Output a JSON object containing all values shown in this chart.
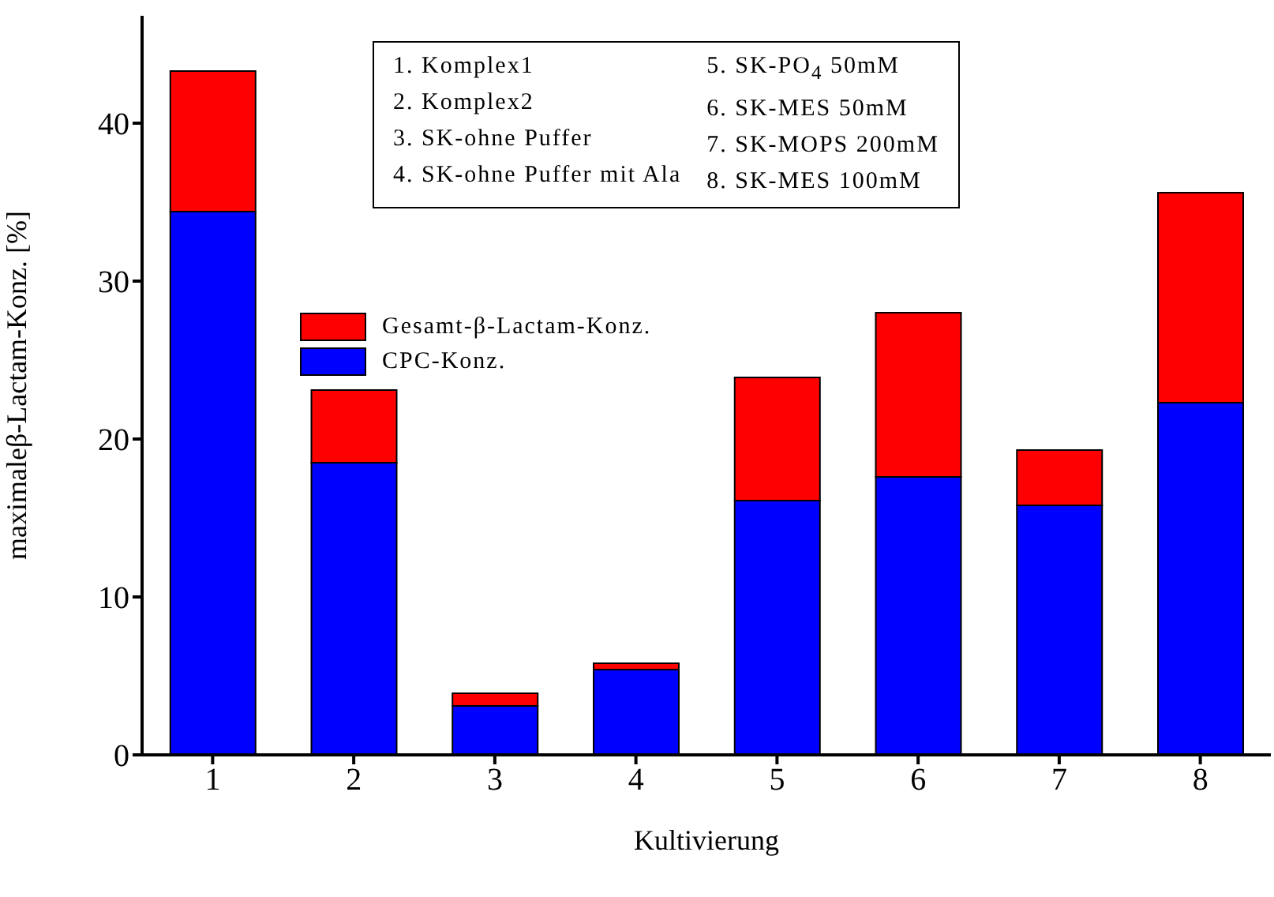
{
  "chart_data": {
    "type": "bar",
    "stacked": true,
    "xlabel": "Kultivierung",
    "ylabel": "maximaleβ-Lactam-Konz. [%]",
    "categories": [
      "1",
      "2",
      "3",
      "4",
      "5",
      "6",
      "7",
      "8"
    ],
    "series": [
      {
        "name": "CPC-Konz.",
        "color": "#0000ff",
        "values": [
          34.4,
          18.5,
          3.1,
          5.4,
          16.1,
          17.6,
          15.8,
          22.3
        ]
      },
      {
        "name": "Gesamt-β-Lactam-Konz.",
        "color": "#ff0000",
        "values": [
          8.9,
          4.6,
          0.8,
          0.4,
          7.8,
          10.4,
          3.5,
          13.3
        ]
      }
    ],
    "ylim": [
      0,
      46.8
    ],
    "yticks": [
      0,
      10,
      20,
      30,
      40
    ],
    "grid": false,
    "legend": "left",
    "annotations": [
      "1. Komplex1",
      "2. Komplex2",
      "3. SK-ohne Puffer",
      "4. SK-ohne Puffer mit Ala",
      "5. SK-PO$_{4}$ 50mM",
      "6. SK-MES 50mM",
      "7. SK-MOPS 200mM",
      "8. SK-MES 100mM"
    ]
  }
}
